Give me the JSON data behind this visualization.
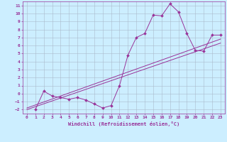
{
  "xlabel": "Windchill (Refroidissement éolien,°C)",
  "bg_color": "#cceeff",
  "grid_color": "#aabbcc",
  "line_color": "#993399",
  "xlim": [
    -0.5,
    23.5
  ],
  "ylim": [
    -2.5,
    11.5
  ],
  "xticks": [
    0,
    1,
    2,
    3,
    4,
    5,
    6,
    7,
    8,
    9,
    10,
    11,
    12,
    13,
    14,
    15,
    16,
    17,
    18,
    19,
    20,
    21,
    22,
    23
  ],
  "yticks": [
    -2,
    -1,
    0,
    1,
    2,
    3,
    4,
    5,
    6,
    7,
    8,
    9,
    10,
    11
  ],
  "series1_x": [
    1,
    2,
    3,
    4,
    5,
    6,
    7,
    8,
    9,
    10,
    11,
    12,
    13,
    14,
    15,
    16,
    17,
    18,
    19,
    20,
    21,
    22,
    23
  ],
  "series1_y": [
    -2.0,
    0.3,
    -0.3,
    -0.5,
    -0.7,
    -0.5,
    -0.8,
    -1.3,
    -1.8,
    -1.5,
    1.0,
    4.8,
    7.0,
    7.5,
    9.8,
    9.7,
    11.2,
    10.2,
    7.5,
    5.4,
    5.3,
    7.3,
    7.3
  ],
  "line2_x": [
    0,
    23
  ],
  "line2_y": [
    -1.8,
    6.8
  ],
  "line3_x": [
    0,
    23
  ],
  "line3_y": [
    -2.0,
    6.3
  ]
}
